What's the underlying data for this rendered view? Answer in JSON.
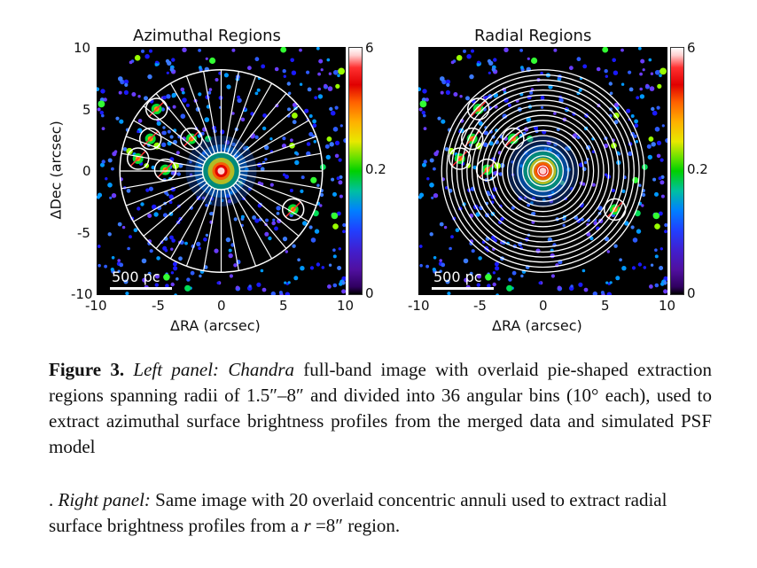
{
  "figure": {
    "left_panel": {
      "title": "Azimuthal Regions",
      "xlabel": "ΔRA (arcsec)",
      "ylabel": "ΔDec (arcsec)",
      "x_ticks": [
        "-10",
        "-5",
        "0",
        "5",
        "10"
      ],
      "y_ticks": [
        "10",
        "5",
        "0",
        "-5",
        "-10"
      ],
      "colorbar_ticks": [
        "6",
        "0.2",
        "0"
      ],
      "scalebar_label": "500 pc",
      "n_wedges": 36
    },
    "right_panel": {
      "title": "Radial Regions",
      "xlabel": "ΔRA (arcsec)",
      "x_ticks": [
        "-10",
        "-5",
        "0",
        "5",
        "10"
      ],
      "colorbar_ticks": [
        "6",
        "0.2",
        "0"
      ],
      "scalebar_label": "500 pc",
      "n_annuli": 20
    },
    "colors": {
      "background": "#000000",
      "region_lines": "#ffffff"
    }
  },
  "caption": {
    "figure_label": "Figure 3.",
    "left_label": "Left panel:",
    "left_italic": "Chandra",
    "left_text": " full-band image with overlaid pie-shaped extraction regions spanning radii of 1.5″–8″ and divided into 36 angular bins (10° each), used to extract azimuthal surface brightness profiles from the merged data and simulated PSF model",
    "right_prefix": ". ",
    "right_label": "Right panel:",
    "right_text": " Same image with 20 overlaid concentric annuli used to extract radial surface brightness profiles from a ",
    "right_r": "r",
    "right_end": " =8″ region."
  }
}
